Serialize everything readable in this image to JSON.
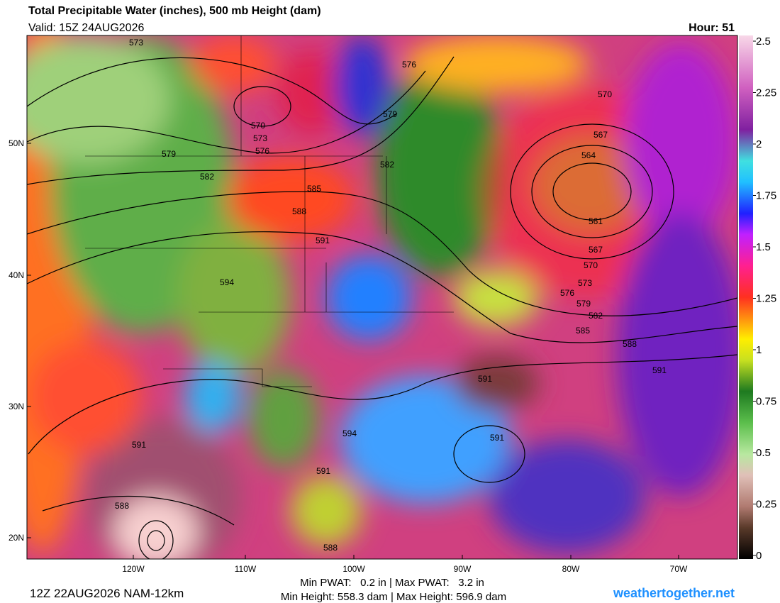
{
  "header": {
    "title": "Total Precipitable Water (inches), 500 mb Height (dam)",
    "valid": "Valid: 15Z 24AUG2026",
    "hour": "Hour: 51"
  },
  "map": {
    "lat_labels": [
      "50N",
      "40N",
      "30N",
      "20N"
    ],
    "lon_labels": [
      "120W",
      "110W",
      "100W",
      "90W",
      "80W",
      "70W"
    ],
    "contour_labels": [
      "573",
      "576",
      "570",
      "573",
      "576",
      "579",
      "570",
      "567",
      "564",
      "579",
      "582",
      "582",
      "585",
      "588",
      "591",
      "561",
      "567",
      "570",
      "594",
      "573",
      "576",
      "579",
      "582",
      "585",
      "588",
      "591",
      "591",
      "594",
      "591",
      "591",
      "591",
      "588",
      "588"
    ]
  },
  "colorbar": {
    "range": [
      0,
      2.5
    ],
    "ticks": [
      2.5,
      2.25,
      2,
      1.75,
      1.5,
      1.25,
      1,
      0.75,
      0.5,
      0.25,
      0
    ]
  },
  "footer": {
    "run": "12Z 22AUG2026 NAM-12km",
    "pwat": "Min PWAT:   0.2 in | Max PWAT:   3.2 in",
    "height": "Min Height: 558.3 dam | Max Height: 596.9 dam",
    "site": "weathertogether.net"
  }
}
